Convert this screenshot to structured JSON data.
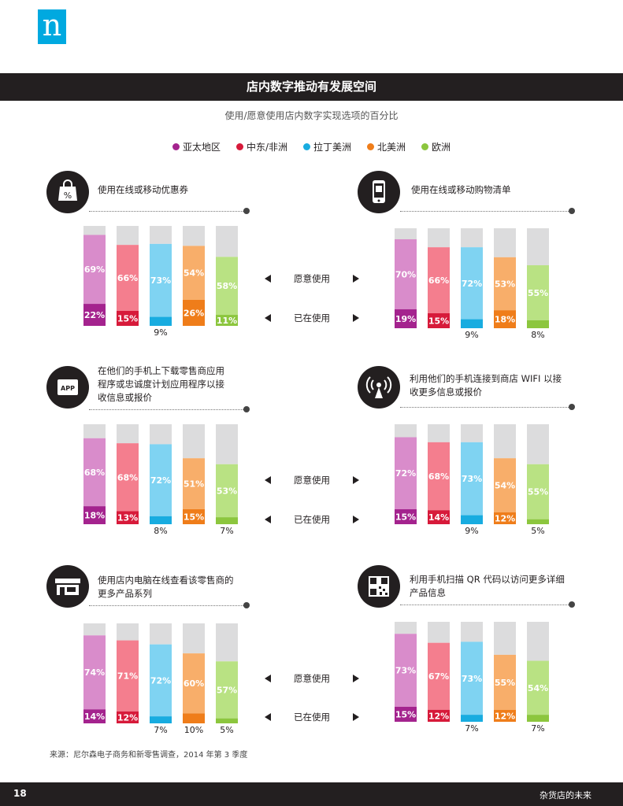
{
  "logo": {
    "glyph": "n"
  },
  "page": {
    "title": "店内数字推动有发展空间",
    "subtitle": "使用/愿意使用店内数字实现选项的百分比",
    "source": "来源：尼尔森电子商务和新零售调查，2014 年第 3 季度",
    "page_number": "18",
    "footer_title": "杂货店的未来"
  },
  "legend": [
    {
      "label": "亚太地区",
      "color": "#a4238e"
    },
    {
      "label": "中东/非洲",
      "color": "#d71a3a"
    },
    {
      "label": "拉丁美洲",
      "color": "#18ace0"
    },
    {
      "label": "北美洲",
      "color": "#ef7d1a"
    },
    {
      "label": "欧洲",
      "color": "#8cc63e"
    }
  ],
  "labels": {
    "willing": "愿意使用",
    "using": "已在使用"
  },
  "panels": [
    {
      "icon": "shopping-bag-percent-icon",
      "title_lines": [
        "使用在线或移动优惠券"
      ]
    },
    {
      "icon": "smartphone-list-icon",
      "title_lines": [
        "使用在线或移动购物清单"
      ]
    },
    {
      "icon": "app-icon",
      "title_lines": [
        "在他们的手机上下载零售商应用",
        "程序或忠诚度计划应用程序以接",
        "收信息或报价"
      ]
    },
    {
      "icon": "wifi-antenna-icon",
      "title_lines": [
        "利用他们的手机连接到商店 WIFI 以接",
        "收更多信息或报价"
      ]
    },
    {
      "icon": "store-computer-icon",
      "title_lines": [
        "使用店内电脑在线查看该零售商的",
        "更多产品系列"
      ]
    },
    {
      "icon": "qr-code-icon",
      "title_lines": [
        "利用手机扫描 QR 代码以访问更多详细",
        "产品信息"
      ]
    }
  ],
  "chart_data": [
    {
      "type": "bar",
      "title": "使用在线或移动优惠券",
      "categories": [
        "亚太地区",
        "中东/非洲",
        "拉丁美洲",
        "北美洲",
        "欧洲"
      ],
      "series": [
        {
          "name": "已在使用",
          "values": [
            22,
            15,
            9,
            26,
            11
          ]
        },
        {
          "name": "愿意使用",
          "values": [
            69,
            66,
            73,
            54,
            58
          ]
        }
      ],
      "ylim": [
        0,
        100
      ]
    },
    {
      "type": "bar",
      "title": "使用在线或移动购物清单",
      "categories": [
        "亚太地区",
        "中东/非洲",
        "拉丁美洲",
        "北美洲",
        "欧洲"
      ],
      "series": [
        {
          "name": "已在使用",
          "values": [
            19,
            15,
            9,
            18,
            8
          ]
        },
        {
          "name": "愿意使用",
          "values": [
            70,
            66,
            72,
            53,
            55
          ]
        }
      ],
      "ylim": [
        0,
        100
      ]
    },
    {
      "type": "bar",
      "title": "在他们的手机上下载零售商应用程序或忠诚度计划应用程序以接收信息或报价",
      "categories": [
        "亚太地区",
        "中东/非洲",
        "拉丁美洲",
        "北美洲",
        "欧洲"
      ],
      "series": [
        {
          "name": "已在使用",
          "values": [
            18,
            13,
            8,
            15,
            7
          ]
        },
        {
          "name": "愿意使用",
          "values": [
            68,
            68,
            72,
            51,
            53
          ]
        }
      ],
      "ylim": [
        0,
        100
      ]
    },
    {
      "type": "bar",
      "title": "利用他们的手机连接到商店 WIFI 以接收更多信息或报价",
      "categories": [
        "亚太地区",
        "中东/非洲",
        "拉丁美洲",
        "北美洲",
        "欧洲"
      ],
      "series": [
        {
          "name": "已在使用",
          "values": [
            15,
            14,
            9,
            12,
            5
          ]
        },
        {
          "name": "愿意使用",
          "values": [
            72,
            68,
            73,
            54,
            55
          ]
        }
      ],
      "ylim": [
        0,
        100
      ]
    },
    {
      "type": "bar",
      "title": "使用店内电脑在线查看该零售商的更多产品系列",
      "categories": [
        "亚太地区",
        "中东/非洲",
        "拉丁美洲",
        "北美洲",
        "欧洲"
      ],
      "series": [
        {
          "name": "已在使用",
          "values": [
            14,
            12,
            7,
            10,
            5
          ]
        },
        {
          "name": "愿意使用",
          "values": [
            74,
            71,
            72,
            60,
            57
          ]
        }
      ],
      "ylim": [
        0,
        100
      ]
    },
    {
      "type": "bar",
      "title": "利用手机扫描 QR 代码以访问更多详细产品信息",
      "categories": [
        "亚太地区",
        "中东/非洲",
        "拉丁美洲",
        "北美洲",
        "欧洲"
      ],
      "series": [
        {
          "name": "已在使用",
          "values": [
            15,
            12,
            7,
            12,
            7
          ]
        },
        {
          "name": "愿意使用",
          "values": [
            73,
            67,
            73,
            55,
            54
          ]
        }
      ],
      "ylim": [
        0,
        100
      ]
    }
  ],
  "colors": {
    "dark": [
      "#a4238e",
      "#d71a3a",
      "#18ace0",
      "#ef7d1a",
      "#8cc63e"
    ],
    "light": [
      "#d98ccb",
      "#f47e8e",
      "#7fd3f2",
      "#f8ae6a",
      "#b9e283"
    ],
    "rest": "#dcdcdd"
  }
}
